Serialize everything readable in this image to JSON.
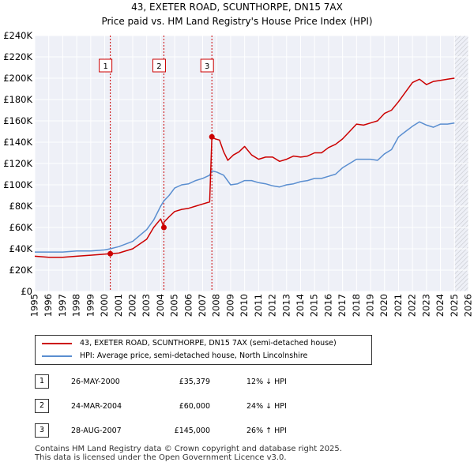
{
  "header": {
    "title": "43, EXETER ROAD, SCUNTHORPE, DN15 7AX",
    "subtitle": "Price paid vs. HM Land Registry's House Price Index (HPI)"
  },
  "chart_data": {
    "type": "line",
    "title": "43, EXETER ROAD, SCUNTHORPE, DN15 7AX",
    "subtitle": "Price paid vs. HM Land Registry's House Price Index (HPI)",
    "xlabel": "",
    "ylabel": "",
    "xlim": [
      1995,
      2026
    ],
    "ylim": [
      0,
      240000
    ],
    "x_ticks": [
      1995,
      1996,
      1997,
      1998,
      1999,
      2000,
      2001,
      2002,
      2003,
      2004,
      2005,
      2006,
      2007,
      2008,
      2009,
      2010,
      2011,
      2012,
      2013,
      2014,
      2015,
      2016,
      2017,
      2018,
      2019,
      2020,
      2021,
      2022,
      2023,
      2024,
      2025,
      2026
    ],
    "y_ticks": [
      {
        "value": 0,
        "label": "£0"
      },
      {
        "value": 20000,
        "label": "£20K"
      },
      {
        "value": 40000,
        "label": "£40K"
      },
      {
        "value": 60000,
        "label": "£60K"
      },
      {
        "value": 80000,
        "label": "£80K"
      },
      {
        "value": 100000,
        "label": "£100K"
      },
      {
        "value": 120000,
        "label": "£120K"
      },
      {
        "value": 140000,
        "label": "£140K"
      },
      {
        "value": 160000,
        "label": "£160K"
      },
      {
        "value": 180000,
        "label": "£180K"
      },
      {
        "value": 200000,
        "label": "£200K"
      },
      {
        "value": 220000,
        "label": "£220K"
      },
      {
        "value": 240000,
        "label": "£240K"
      }
    ],
    "grid": true,
    "shaded_region": {
      "from": 2025.0,
      "to": 2026.0,
      "note": "forecast / future period hatched"
    },
    "series": [
      {
        "name": "43, EXETER ROAD, SCUNTHORPE, DN15 7AX (semi-detached house)",
        "color": "#cc0000",
        "x": [
          1995.0,
          1996.0,
          1997.0,
          1998.0,
          1999.0,
          2000.0,
          2000.4,
          2001.0,
          2002.0,
          2003.0,
          2003.5,
          2004.0,
          2004.23,
          2004.23,
          2004.6,
          2005.0,
          2005.5,
          2006.0,
          2006.5,
          2007.0,
          2007.5,
          2007.66,
          2007.66,
          2007.9,
          2008.2,
          2008.5,
          2008.8,
          2009.2,
          2009.6,
          2010.0,
          2010.5,
          2011.0,
          2011.5,
          2012.0,
          2012.5,
          2013.0,
          2013.5,
          2014.0,
          2014.5,
          2015.0,
          2015.5,
          2016.0,
          2016.5,
          2017.0,
          2017.5,
          2018.0,
          2018.5,
          2019.0,
          2019.5,
          2020.0,
          2020.5,
          2021.0,
          2021.5,
          2022.0,
          2022.5,
          2023.0,
          2023.5,
          2024.0,
          2024.5,
          2025.0
        ],
        "values": [
          33000,
          32000,
          32000,
          33000,
          34000,
          35000,
          35379,
          36000,
          40000,
          49000,
          60000,
          68000,
          60000,
          65000,
          70000,
          75000,
          77000,
          78000,
          80000,
          82000,
          84000,
          145000,
          145000,
          143000,
          142000,
          131000,
          123000,
          128000,
          131000,
          136000,
          128000,
          124000,
          126000,
          126000,
          122000,
          124000,
          127000,
          126000,
          127000,
          130000,
          130000,
          135000,
          138000,
          143000,
          150000,
          157000,
          156000,
          158000,
          160000,
          167000,
          170000,
          178000,
          187000,
          196000,
          199000,
          194000,
          197000,
          198000,
          199000,
          200000
        ]
      },
      {
        "name": "HPI: Average price, semi-detached house, North Lincolnshire",
        "color": "#5a8ed0",
        "x": [
          1995.0,
          1996.0,
          1997.0,
          1998.0,
          1999.0,
          2000.0,
          2000.4,
          2001.0,
          2002.0,
          2003.0,
          2003.5,
          2004.0,
          2004.23,
          2004.6,
          2005.0,
          2005.5,
          2006.0,
          2006.5,
          2007.0,
          2007.5,
          2007.66,
          2008.0,
          2008.5,
          2009.0,
          2009.5,
          2010.0,
          2010.5,
          2011.0,
          2011.5,
          2012.0,
          2012.5,
          2013.0,
          2013.5,
          2014.0,
          2014.5,
          2015.0,
          2015.5,
          2016.0,
          2016.5,
          2017.0,
          2017.5,
          2018.0,
          2018.5,
          2019.0,
          2019.5,
          2020.0,
          2020.5,
          2021.0,
          2021.5,
          2022.0,
          2022.5,
          2023.0,
          2023.5,
          2024.0,
          2024.5,
          2025.0
        ],
        "values": [
          37000,
          37000,
          37000,
          38000,
          38000,
          39000,
          40000,
          42000,
          47000,
          58000,
          67000,
          80000,
          85000,
          90000,
          97000,
          100000,
          101000,
          104000,
          106000,
          109000,
          113000,
          112000,
          109000,
          100000,
          101000,
          104000,
          104000,
          102000,
          101000,
          99000,
          98000,
          100000,
          101000,
          103000,
          104000,
          106000,
          106000,
          108000,
          110000,
          116000,
          120000,
          124000,
          124000,
          124000,
          123000,
          129000,
          133000,
          145000,
          150000,
          155000,
          159000,
          156000,
          154000,
          157000,
          157000,
          158000
        ]
      }
    ],
    "annotations": [
      {
        "label": "1",
        "x": 2000.4,
        "y": 35379
      },
      {
        "label": "2",
        "x": 2004.23,
        "y": 60000
      },
      {
        "label": "3",
        "x": 2007.66,
        "y": 145000
      }
    ]
  },
  "legend": [
    {
      "label": "43, EXETER ROAD, SCUNTHORPE, DN15 7AX (semi-detached house)",
      "color": "#cc0000"
    },
    {
      "label": "HPI: Average price, semi-detached house, North Lincolnshire",
      "color": "#5a8ed0"
    }
  ],
  "sales": [
    {
      "num": "1",
      "date": "26-MAY-2000",
      "price": "£35,379",
      "hpi": "12% ↓ HPI"
    },
    {
      "num": "2",
      "date": "24-MAR-2004",
      "price": "£60,000",
      "hpi": "24% ↓ HPI"
    },
    {
      "num": "3",
      "date": "28-AUG-2007",
      "price": "£145,000",
      "hpi": "26% ↑ HPI"
    }
  ],
  "footer": {
    "line1": "Contains HM Land Registry data © Crown copyright and database right 2025.",
    "line2": "This data is licensed under the Open Government Licence v3.0."
  }
}
